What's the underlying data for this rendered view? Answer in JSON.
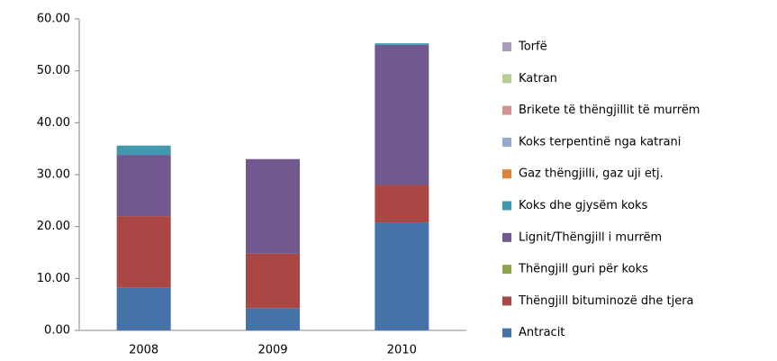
{
  "chart_data": {
    "type": "stacked_bar",
    "categories": [
      "2008",
      "2009",
      "2010"
    ],
    "series": [
      {
        "name": "Antracit",
        "color": "#4572a7",
        "values": [
          8.2,
          4.3,
          20.8
        ]
      },
      {
        "name": "Thëngjill bituminozë dhe tjera",
        "color": "#aa4643",
        "values": [
          13.8,
          10.5,
          7.2
        ]
      },
      {
        "name": "Thëngjill guri për koks",
        "color": "#89a54e",
        "values": [
          0,
          0,
          0
        ]
      },
      {
        "name": "Lignit/Thëngjill i murrëm",
        "color": "#71588f",
        "values": [
          11.8,
          18.2,
          27
        ]
      },
      {
        "name": "Koks dhe gjysëm koks",
        "color": "#4198af",
        "values": [
          1.8,
          0,
          0.3
        ]
      },
      {
        "name": "Gaz thëngjilli, gaz uji etj.",
        "color": "#db843d",
        "values": [
          0,
          0,
          0
        ]
      },
      {
        "name": "Koks terpentinë nga katrani",
        "color": "#93a9cf",
        "values": [
          0,
          0,
          0
        ]
      },
      {
        "name": "Brikete të thëngjillit të murrëm",
        "color": "#d19392",
        "values": [
          0,
          0,
          0
        ]
      },
      {
        "name": "Katran",
        "color": "#b9cd96",
        "values": [
          0,
          0,
          0
        ]
      },
      {
        "name": "Torfë",
        "color": "#a99bbd",
        "values": [
          0,
          0,
          0
        ]
      }
    ],
    "ylim": [
      0,
      60
    ],
    "yticks": [
      {
        "value": 0,
        "label": "0.00"
      },
      {
        "value": 10,
        "label": "10.00"
      },
      {
        "value": 20,
        "label": "20.00"
      },
      {
        "value": 30,
        "label": "30.00"
      },
      {
        "value": 40,
        "label": "40.00"
      },
      {
        "value": 50,
        "label": "50.00"
      },
      {
        "value": 60,
        "label": "60.00"
      }
    ],
    "legend": "right"
  }
}
